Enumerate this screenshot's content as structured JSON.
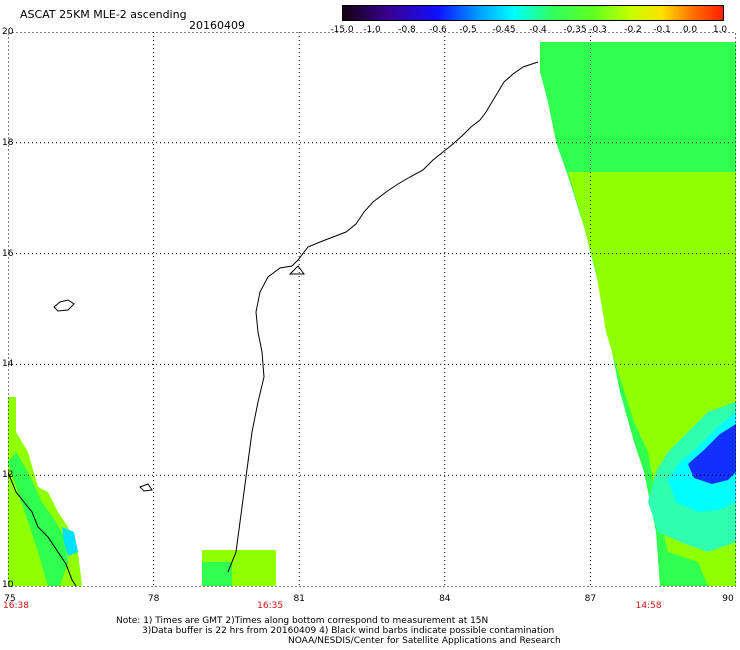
{
  "header": {
    "title": "ASCAT 25KM MLE-2 ascending",
    "date": "20160409"
  },
  "colorbar": {
    "labels": [
      "-15.0",
      "-1.0",
      "-0.8",
      "-0.6",
      "-0.5",
      "-0.45",
      "-0.4",
      "-0.35",
      "-0.3",
      "-0.2",
      "-0.1",
      "0.0",
      "1.0"
    ],
    "colors": [
      "#1a0010",
      "#3c0080",
      "#2020ff",
      "#00a0ff",
      "#00ffff",
      "#40ffc0",
      "#30ff60",
      "#40ff40",
      "#90ff00",
      "#c8ff00",
      "#ffc000",
      "#ff6000",
      "#ff2000"
    ]
  },
  "map": {
    "lat_labels": [
      "20",
      "18",
      "16",
      "14",
      "12",
      "10"
    ],
    "lon_labels": [
      "75",
      "78",
      "81",
      "84",
      "87",
      "90"
    ],
    "time_labels": [
      {
        "text": "16:38",
        "lon": 75.1
      },
      {
        "text": "16:35",
        "lon": 80.4
      },
      {
        "text": "14:58",
        "lon": 88.2
      }
    ],
    "colors": {
      "green": "#30ff50",
      "lime": "#90ff00",
      "cyan": "#00ffff",
      "blue": "#1030ff",
      "aqua": "#00e0ff",
      "seafoam": "#30ffb0"
    }
  },
  "notes": {
    "line1": "Note: 1) Times are GMT 2)Times along bottom correspond to measurement at 15N",
    "line2": "3)Data buffer is 22 hrs from 20160409 4) Black wind barbs indicate possible contamination",
    "line3": "NOAA/NESDIS/Center for Satellite Applications and Research"
  }
}
